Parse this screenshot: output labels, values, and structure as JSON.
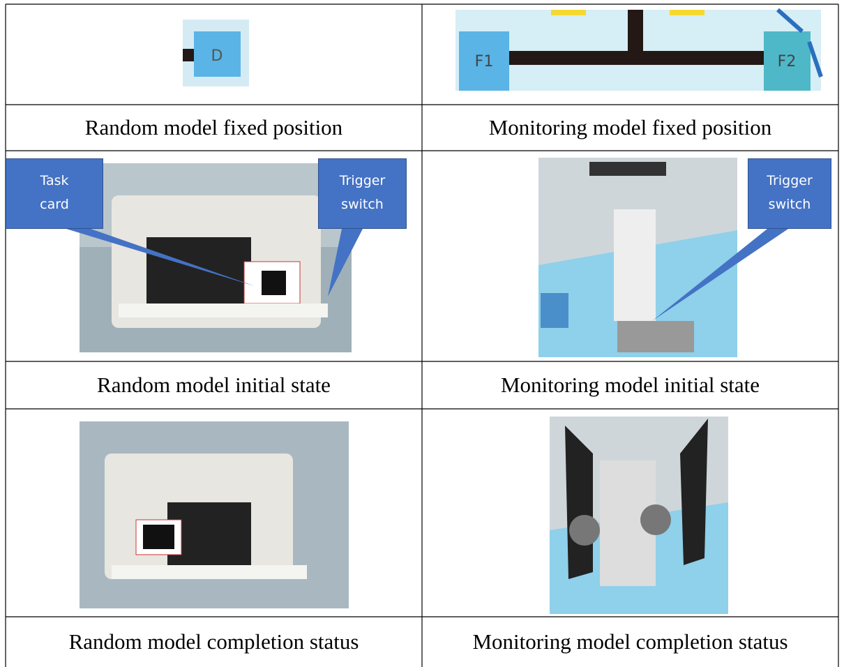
{
  "table": {
    "figures": {
      "fixed_position": {
        "left": [
          "D"
        ],
        "right": [
          "F1",
          "F2"
        ]
      },
      "initial_state": {
        "left": [
          "Task card",
          "Trigger switch"
        ],
        "right": [
          "Trigger switch"
        ]
      }
    },
    "captions": [
      [
        "Random model fixed position",
        "Monitoring model fixed position"
      ],
      [
        "Random model initial state",
        "Monitoring model initial state"
      ],
      [
        "Random model completion status",
        "Monitoring model completion status"
      ]
    ]
  }
}
